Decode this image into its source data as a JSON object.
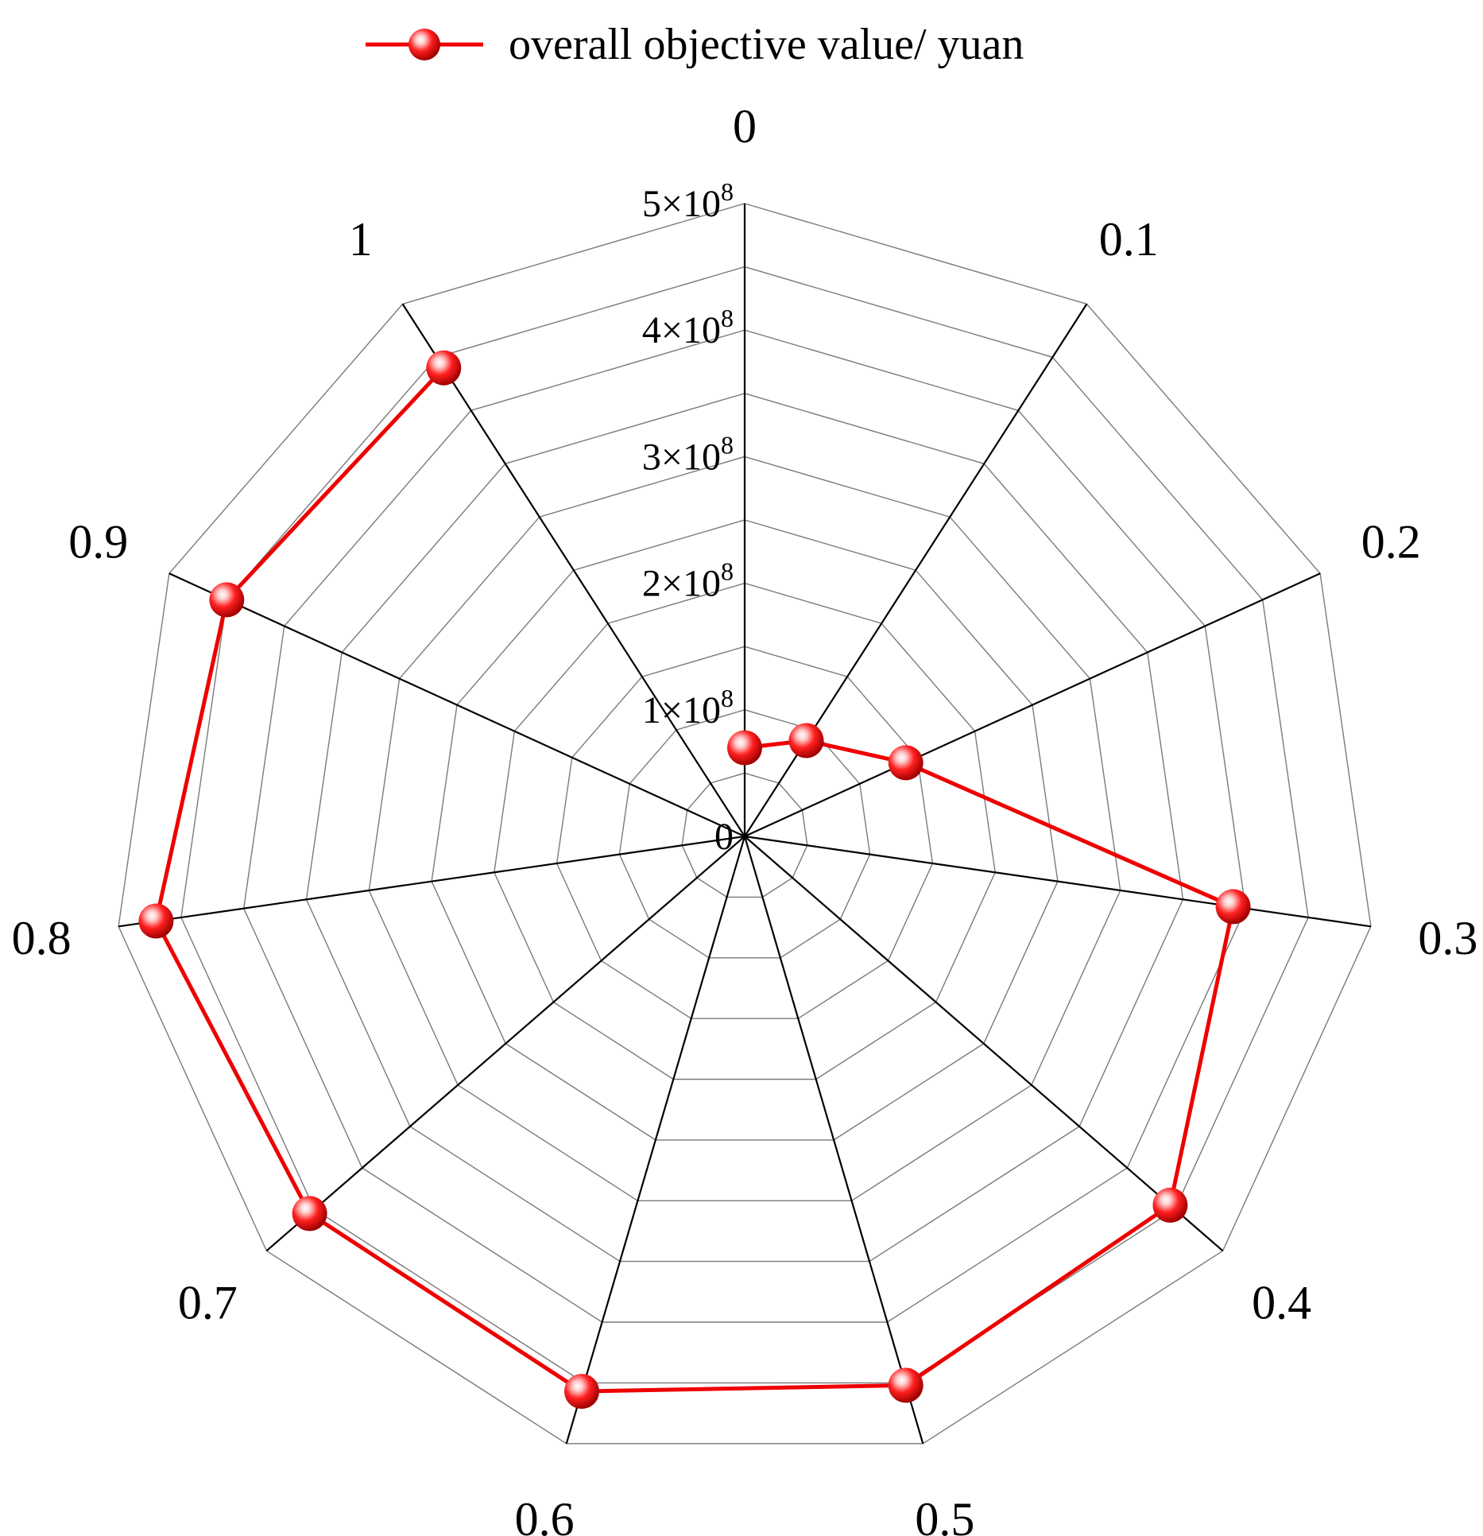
{
  "chart_data": {
    "type": "radar",
    "categories": [
      "0",
      "0.1",
      "0.2",
      "0.3",
      "0.4",
      "0.5",
      "0.6",
      "0.7",
      "0.8",
      "0.9",
      "1"
    ],
    "radial_axis": {
      "min": 0,
      "max": 500000000,
      "ticks": [
        0,
        100000000,
        200000000,
        300000000,
        400000000,
        500000000
      ],
      "tick_labels": [
        "0",
        "1×10",
        "2×10",
        "3×10",
        "4×10",
        "5×10"
      ],
      "tick_exponents": [
        "",
        "8",
        "8",
        "8",
        "8",
        "8"
      ],
      "minor_rings": 10
    },
    "series": [
      {
        "name": "overall objective value/ yuan",
        "color": "#ee0000",
        "marker": "sphere",
        "values": [
          70000000,
          90000000,
          140000000,
          390000000,
          445000000,
          452000000,
          457000000,
          455000000,
          470000000,
          450000000,
          440000000
        ]
      }
    ],
    "legend": {
      "position": "top-center"
    },
    "grid": true
  }
}
